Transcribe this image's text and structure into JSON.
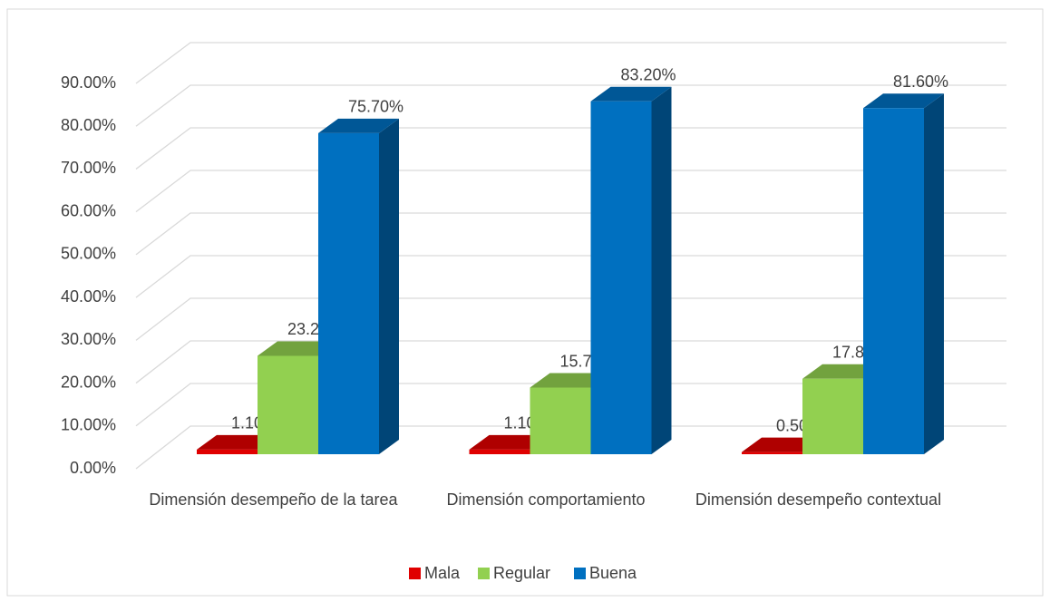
{
  "chart_data": {
    "type": "bar3d",
    "categories": [
      "Dimensión desempeño de la tarea",
      "Dimensión comportamiento",
      "Dimensión desempeño contextual"
    ],
    "series": [
      {
        "name": "Mala",
        "color": "#e00000",
        "values": [
          1.1,
          1.1,
          0.5
        ],
        "value_labels": [
          "1.10%",
          "1.10%",
          "0.50%"
        ]
      },
      {
        "name": "Regular",
        "color": "#92d050",
        "values": [
          23.2,
          15.7,
          17.8
        ],
        "value_labels": [
          "23.20%",
          "15.70%",
          "17.80%"
        ]
      },
      {
        "name": "Buena",
        "color": "#0070c0",
        "values": [
          75.7,
          83.2,
          81.6
        ],
        "value_labels": [
          "75.70%",
          "83.20%",
          "81.60%"
        ]
      }
    ],
    "ylim": [
      0,
      90
    ],
    "yticks": [
      {
        "value": 0,
        "label": "0.00%"
      },
      {
        "value": 10,
        "label": "10.00%"
      },
      {
        "value": 20,
        "label": "20.00%"
      },
      {
        "value": 30,
        "label": "30.00%"
      },
      {
        "value": 40,
        "label": "40.00%"
      },
      {
        "value": 50,
        "label": "50.00%"
      },
      {
        "value": 60,
        "label": "60.00%"
      },
      {
        "value": 70,
        "label": "70.00%"
      },
      {
        "value": 80,
        "label": "80.00%"
      },
      {
        "value": 90,
        "label": "90.00%"
      }
    ],
    "grid": true,
    "legend": "bottom"
  }
}
